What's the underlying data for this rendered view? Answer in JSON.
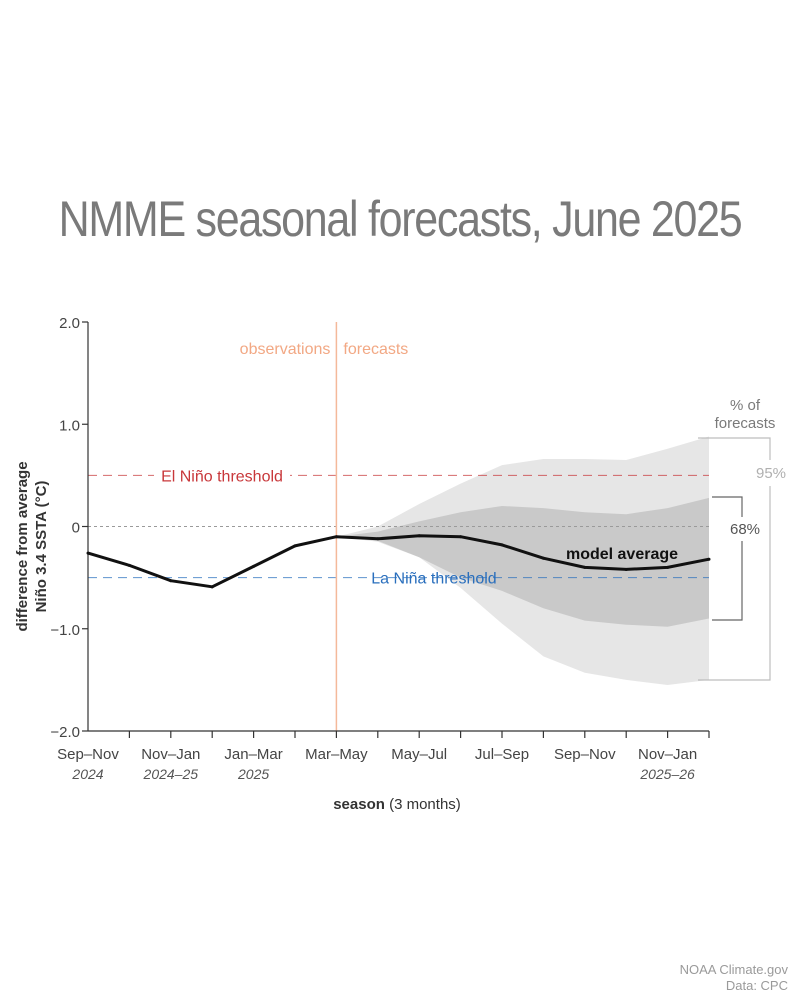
{
  "chart_data": {
    "type": "line",
    "title": "NMME seasonal forecasts, June 2025",
    "ylabel_line1": "difference from average",
    "ylabel_line2": "Niño 3.4 SSTA (°C)",
    "xlabel_bold": "season",
    "xlabel_rest": " (3 months)",
    "ylim": [
      -2.0,
      2.0
    ],
    "yticks": [
      {
        "value": 2.0,
        "label": "2.0"
      },
      {
        "value": 1.0,
        "label": "1.0"
      },
      {
        "value": 0,
        "label": "0"
      },
      {
        "value": -1.0,
        "label": "−1.0"
      },
      {
        "value": -2.0,
        "label": "−2.0"
      }
    ],
    "x_ticks": [
      {
        "index": 0,
        "label": "Sep–Nov",
        "sub": "2024"
      },
      {
        "index": 2,
        "label": "Nov–Jan",
        "sub": "2024–25"
      },
      {
        "index": 4,
        "label": "Jan–Mar",
        "sub": "2025"
      },
      {
        "index": 6,
        "label": "Mar–May",
        "sub": ""
      },
      {
        "index": 8,
        "label": "May–Jul",
        "sub": ""
      },
      {
        "index": 10,
        "label": "Jul–Sep",
        "sub": ""
      },
      {
        "index": 12,
        "label": "Sep–Nov",
        "sub": ""
      },
      {
        "index": 14,
        "label": "Nov–Jan",
        "sub": "2025–26"
      }
    ],
    "divider_index": 6,
    "observations_label": "observations",
    "forecasts_label": "forecasts",
    "thresholds": [
      {
        "name": "El Niño threshold",
        "value": 0.5,
        "color": "#c8373a"
      },
      {
        "name": "La Niña threshold",
        "value": -0.5,
        "color": "#2a6fbd"
      }
    ],
    "model_average": {
      "name": "model average",
      "x": [
        0,
        1,
        2,
        3,
        4,
        5,
        6,
        7,
        8,
        9,
        10,
        11,
        12,
        13,
        14,
        15
      ],
      "y": [
        -0.26,
        -0.38,
        -0.53,
        -0.59,
        -0.39,
        -0.19,
        -0.1,
        -0.12,
        -0.09,
        -0.1,
        -0.18,
        -0.31,
        -0.4,
        -0.42,
        -0.4,
        -0.32
      ]
    },
    "band_95": {
      "x": [
        6,
        7,
        8,
        9,
        10,
        11,
        12,
        13,
        14,
        15
      ],
      "upper": [
        -0.1,
        0.0,
        0.22,
        0.42,
        0.6,
        0.66,
        0.66,
        0.65,
        0.76,
        0.88
      ],
      "lower": [
        -0.1,
        -0.15,
        -0.3,
        -0.6,
        -0.95,
        -1.27,
        -1.43,
        -1.5,
        -1.55,
        -1.5
      ]
    },
    "band_68": {
      "x": [
        6,
        7,
        8,
        9,
        10,
        11,
        12,
        13,
        14,
        15
      ],
      "upper": [
        -0.1,
        -0.05,
        0.05,
        0.14,
        0.2,
        0.18,
        0.14,
        0.12,
        0.18,
        0.28
      ],
      "lower": [
        -0.1,
        -0.14,
        -0.3,
        -0.5,
        -0.63,
        -0.8,
        -0.92,
        -0.96,
        -0.98,
        -0.9
      ]
    },
    "legend_title_line1": "% of",
    "legend_title_line2": "forecasts",
    "legend_95": "95%",
    "legend_68": "68%"
  },
  "credits": {
    "line1": "NOAA Climate.gov",
    "line2": "Data: CPC"
  }
}
